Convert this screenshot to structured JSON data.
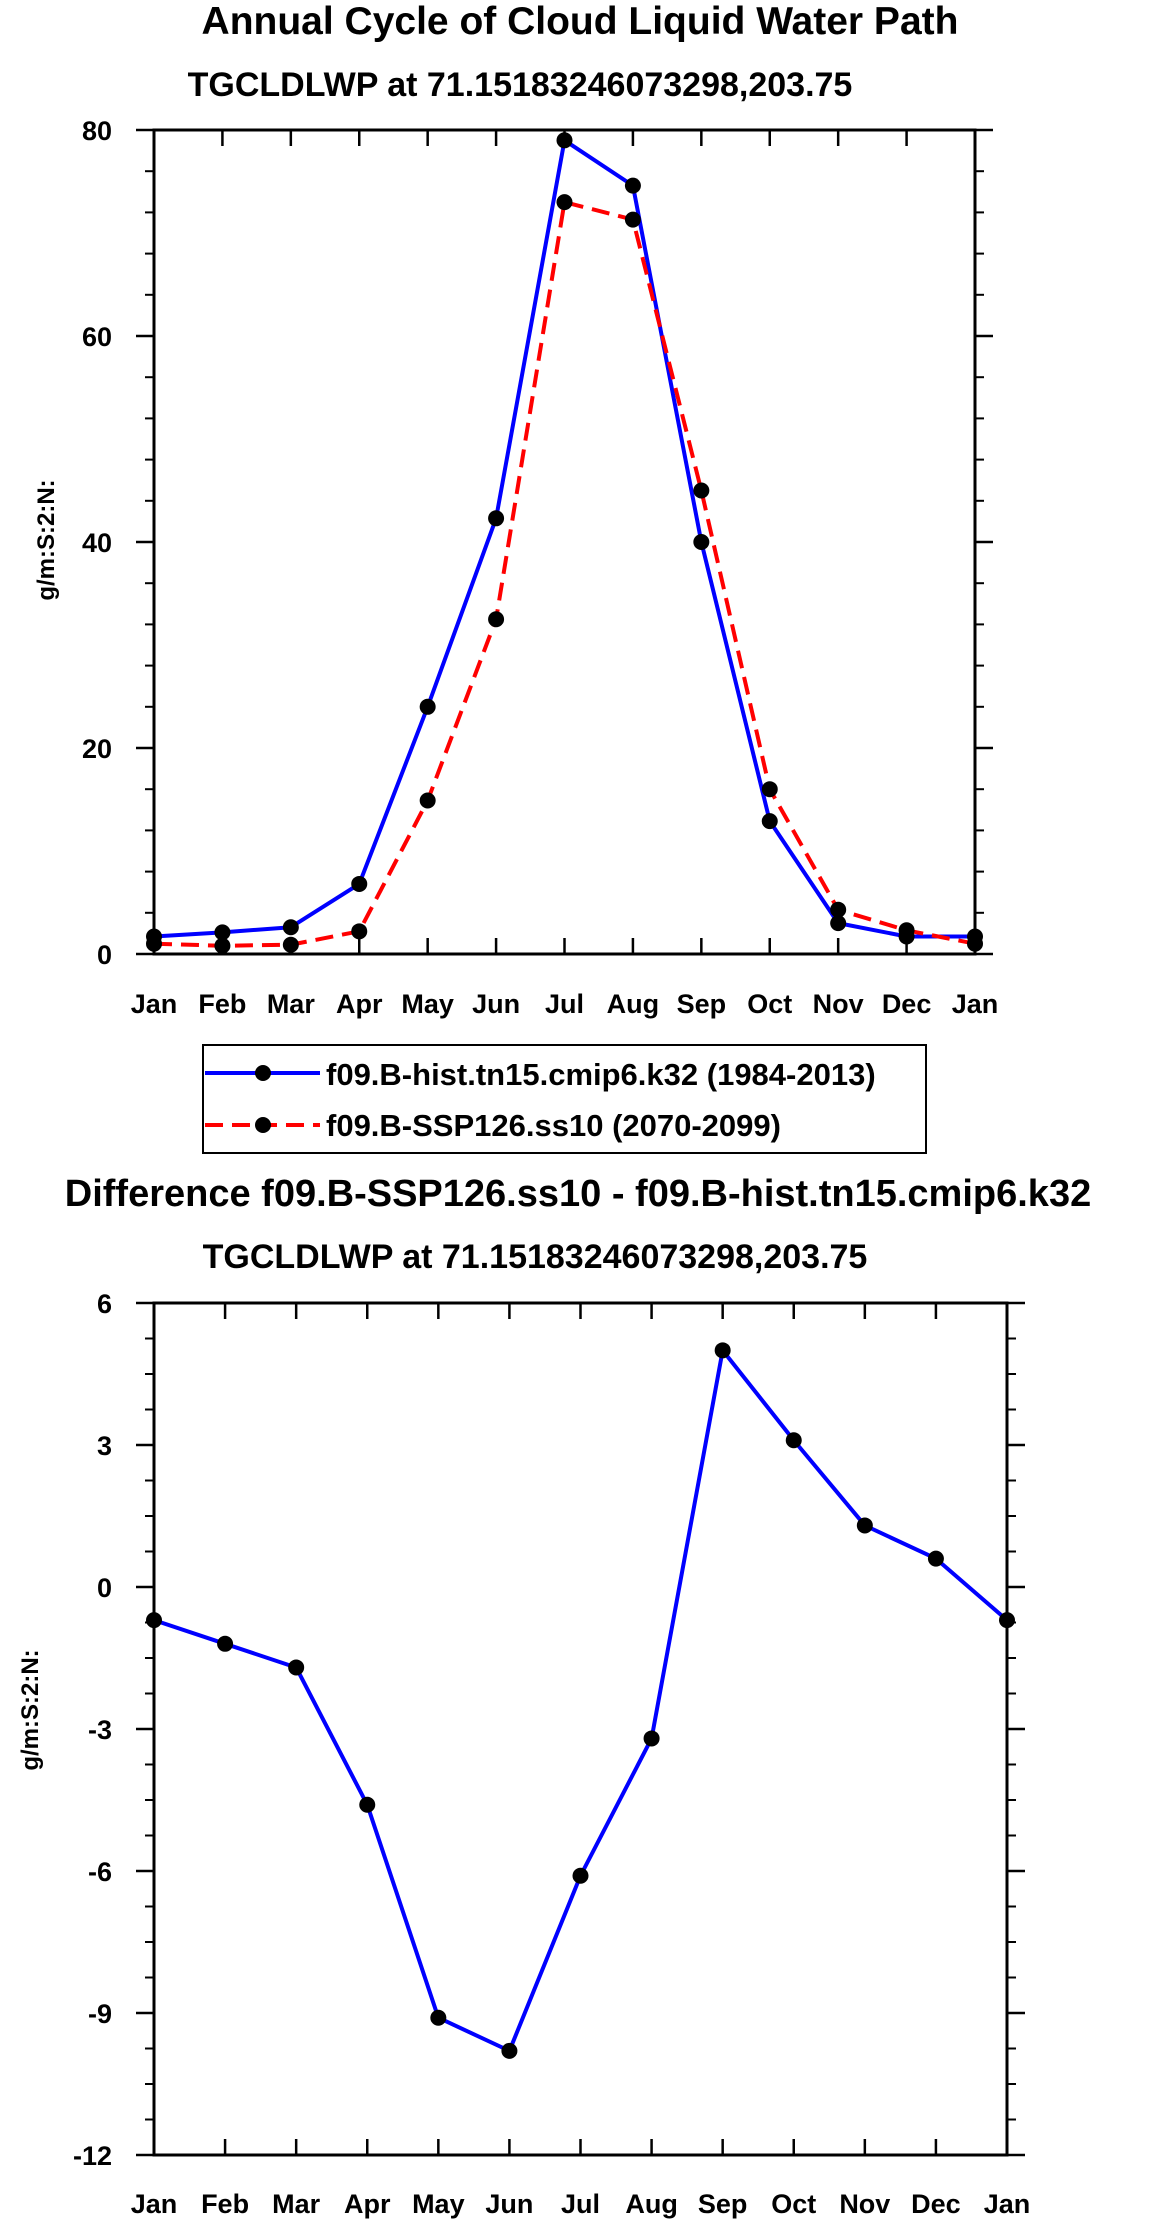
{
  "chart_data": [
    {
      "type": "line",
      "title": "Annual Cycle of Cloud Liquid Water Path",
      "subtitle": "TGCLDLWP at 71.15183246073298,203.75",
      "xlabel": "",
      "ylabel": "g/m:S:2:N:",
      "categories": [
        "Jan",
        "Feb",
        "Mar",
        "Apr",
        "May",
        "Jun",
        "Jul",
        "Aug",
        "Sep",
        "Oct",
        "Nov",
        "Dec",
        "Jan"
      ],
      "ylim": [
        0,
        80
      ],
      "yticks": [
        0,
        20,
        40,
        60,
        80
      ],
      "ytick_labels": [
        "0",
        "20",
        "40",
        "60",
        "80"
      ],
      "legend_position": "bottom",
      "series": [
        {
          "name": "f09.B-hist.tn15.cmip6.k32 (1984-2013)",
          "color": "#0000ff",
          "dash": "solid",
          "values": [
            1.7,
            2.1,
            2.6,
            6.8,
            24.0,
            42.3,
            79.0,
            74.6,
            40.0,
            12.9,
            3.0,
            1.7,
            1.7
          ]
        },
        {
          "name": "f09.B-SSP126.ss10 (2070-2099)",
          "color": "#ff0000",
          "dash": "dashed",
          "values": [
            1.0,
            0.8,
            0.9,
            2.2,
            14.9,
            32.5,
            73.0,
            71.3,
            45.0,
            16.0,
            4.3,
            2.3,
            1.0
          ]
        }
      ]
    },
    {
      "type": "line",
      "title": "Difference f09.B-SSP126.ss10 - f09.B-hist.tn15.cmip6.k32",
      "subtitle": "TGCLDLWP at 71.15183246073298,203.75",
      "xlabel": "",
      "ylabel": "g/m:S:2:N:",
      "categories": [
        "Jan",
        "Feb",
        "Mar",
        "Apr",
        "May",
        "Jun",
        "Jul",
        "Aug",
        "Sep",
        "Oct",
        "Nov",
        "Dec",
        "Jan"
      ],
      "ylim": [
        -12,
        6
      ],
      "yticks": [
        -12,
        -9,
        -6,
        -3,
        0,
        3,
        6
      ],
      "ytick_labels": [
        "-12",
        "-9",
        "-6",
        "-3",
        "0",
        "3",
        "6"
      ],
      "series": [
        {
          "name": "difference",
          "color": "#0000ff",
          "dash": "solid",
          "values": [
            -0.7,
            -1.2,
            -1.7,
            -4.6,
            -9.1,
            -9.8,
            -6.1,
            -3.2,
            5.0,
            3.1,
            1.3,
            0.6,
            -0.7
          ]
        }
      ]
    }
  ]
}
